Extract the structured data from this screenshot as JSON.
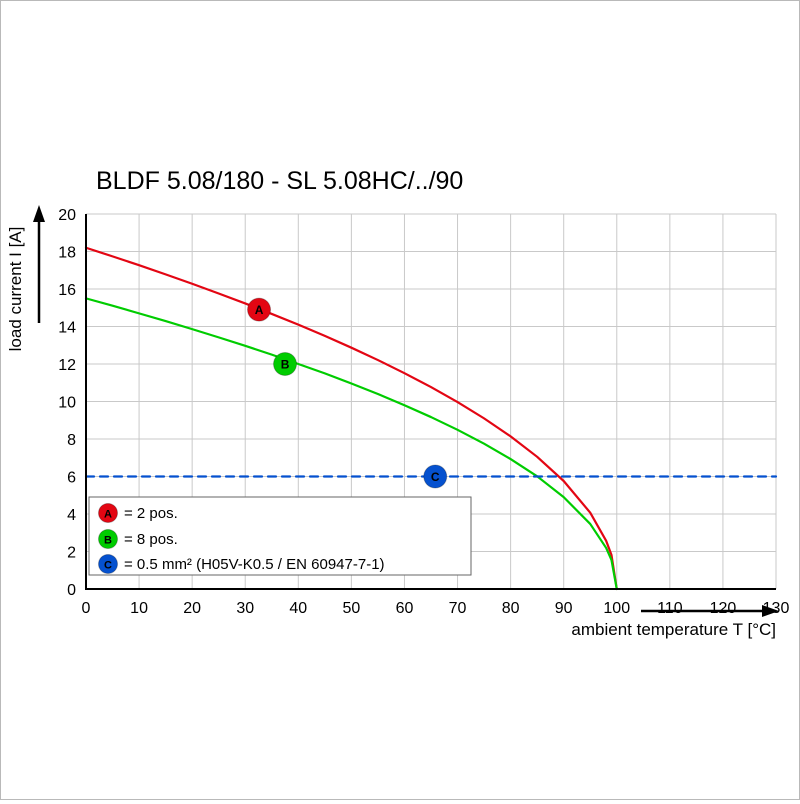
{
  "chart_data": {
    "type": "line",
    "title": "BLDF 5.08/180 - SL 5.08HC/../90",
    "xlabel": "ambient temperature T [°C]",
    "ylabel": "load current I [A]",
    "xlim": [
      0,
      130
    ],
    "ylim": [
      0,
      20
    ],
    "xtick_step": 10,
    "ytick_step": 2,
    "grid": true,
    "legend_position": "bottom-left",
    "series": [
      {
        "name": "2 pos.",
        "color": "#e30613",
        "style": "solid",
        "points": [
          [
            0,
            18.2
          ],
          [
            5,
            17.74
          ],
          [
            10,
            17.27
          ],
          [
            15,
            16.78
          ],
          [
            20,
            16.28
          ],
          [
            25,
            15.76
          ],
          [
            30,
            15.23
          ],
          [
            35,
            14.67
          ],
          [
            40,
            14.1
          ],
          [
            45,
            13.5
          ],
          [
            50,
            12.87
          ],
          [
            55,
            12.21
          ],
          [
            60,
            11.51
          ],
          [
            65,
            10.77
          ],
          [
            70,
            9.97
          ],
          [
            75,
            9.1
          ],
          [
            80,
            8.14
          ],
          [
            85,
            7.05
          ],
          [
            90,
            5.76
          ],
          [
            95,
            4.07
          ],
          [
            98,
            2.57
          ],
          [
            99,
            1.82
          ],
          [
            100,
            0
          ]
        ]
      },
      {
        "name": "8 pos.",
        "color": "#00cc00",
        "style": "solid",
        "points": [
          [
            0,
            15.5
          ],
          [
            5,
            15.11
          ],
          [
            10,
            14.7
          ],
          [
            15,
            14.29
          ],
          [
            20,
            13.86
          ],
          [
            25,
            13.42
          ],
          [
            30,
            12.97
          ],
          [
            35,
            12.5
          ],
          [
            40,
            12.0
          ],
          [
            45,
            11.5
          ],
          [
            50,
            10.96
          ],
          [
            55,
            10.4
          ],
          [
            60,
            9.8
          ],
          [
            65,
            9.17
          ],
          [
            70,
            8.49
          ],
          [
            75,
            7.75
          ],
          [
            80,
            6.93
          ],
          [
            85,
            6.01
          ],
          [
            90,
            4.9
          ],
          [
            95,
            3.47
          ],
          [
            98,
            2.19
          ],
          [
            99,
            1.55
          ],
          [
            100,
            0
          ]
        ]
      },
      {
        "name": "0.5 mm² wire limit",
        "color": "#0551cf",
        "style": "dashed",
        "points": [
          [
            0,
            6
          ],
          [
            130,
            6
          ]
        ]
      }
    ],
    "markers": [
      {
        "letter": "A",
        "x": 32.6,
        "y": 14.9,
        "color": "#e30613"
      },
      {
        "letter": "B",
        "x": 37.5,
        "y": 12.0,
        "color": "#00cc00"
      },
      {
        "letter": "C",
        "x": 65.8,
        "y": 6.0,
        "color": "#0551cf"
      }
    ],
    "legend": [
      {
        "letter": "A",
        "color": "#e30613",
        "label": "= 2 pos."
      },
      {
        "letter": "B",
        "color": "#00cc00",
        "label": "= 8 pos."
      },
      {
        "letter": "C",
        "color": "#0551cf",
        "label": "= 0.5 mm² (H05V-K0.5 / EN 60947-7-1)"
      }
    ]
  }
}
